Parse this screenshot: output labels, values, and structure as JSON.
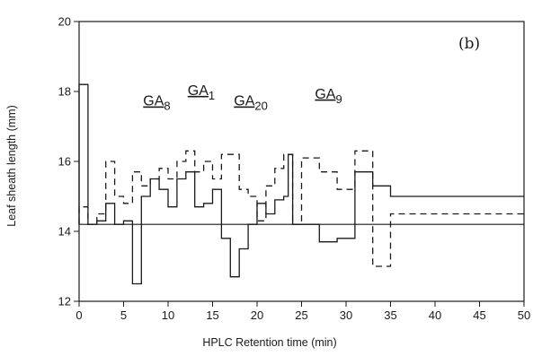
{
  "chart_data": {
    "type": "line",
    "title": "",
    "panel_label": "(b)",
    "xlabel": "HPLC Retention time (min)",
    "ylabel": "Leaf sheath length (mm)",
    "xlim": [
      0,
      50
    ],
    "ylim": [
      12,
      20
    ],
    "x_ticks": [
      0,
      5,
      10,
      15,
      20,
      25,
      30,
      35,
      40,
      45,
      50
    ],
    "y_ticks": [
      12,
      14,
      16,
      18,
      20
    ],
    "grid": false,
    "baseline": 14.2,
    "annotations": [
      {
        "base": "GA",
        "sub": "8",
        "x": 7.2,
        "y": 17.6
      },
      {
        "base": "GA",
        "sub": "1",
        "x": 12.2,
        "y": 17.9
      },
      {
        "base": "GA",
        "sub": "20",
        "x": 17.4,
        "y": 17.6
      },
      {
        "base": "GA",
        "sub": "9",
        "x": 26.5,
        "y": 17.8
      }
    ],
    "series": [
      {
        "style": "solid",
        "steps": [
          [
            0,
            18.2
          ],
          [
            1,
            14.2
          ],
          [
            2,
            14.3
          ],
          [
            3,
            14.8
          ],
          [
            4,
            14.2
          ],
          [
            5,
            14.3
          ],
          [
            6,
            12.5
          ],
          [
            7,
            15.0
          ],
          [
            8,
            15.5
          ],
          [
            9,
            15.2
          ],
          [
            10,
            14.7
          ],
          [
            11,
            15.5
          ],
          [
            12,
            15.7
          ],
          [
            13,
            14.7
          ],
          [
            14,
            14.8
          ],
          [
            15,
            15.2
          ],
          [
            16,
            13.8
          ],
          [
            17,
            12.7
          ],
          [
            18,
            13.5
          ],
          [
            19,
            14.2
          ],
          [
            20,
            14.8
          ],
          [
            21,
            14.5
          ],
          [
            22,
            14.9
          ],
          [
            23,
            15.0
          ],
          [
            23.5,
            16.2
          ],
          [
            24,
            14.2
          ],
          [
            27,
            13.7
          ],
          [
            29,
            13.8
          ],
          [
            31,
            15.7
          ],
          [
            33,
            15.3
          ],
          [
            35,
            15.0
          ],
          [
            50,
            15.0
          ]
        ]
      },
      {
        "style": "dashed",
        "steps": [
          [
            0,
            14.7
          ],
          [
            1,
            14.2
          ],
          [
            2,
            14.5
          ],
          [
            3,
            16.0
          ],
          [
            4,
            15.0
          ],
          [
            5,
            14.8
          ],
          [
            6,
            15.7
          ],
          [
            7,
            15.3
          ],
          [
            8,
            15.5
          ],
          [
            9,
            15.8
          ],
          [
            10,
            15.5
          ],
          [
            11,
            16.0
          ],
          [
            12,
            16.3
          ],
          [
            13,
            15.7
          ],
          [
            14,
            16.0
          ],
          [
            15,
            15.5
          ],
          [
            16,
            16.2
          ],
          [
            18,
            15.2
          ],
          [
            19,
            15.0
          ],
          [
            20,
            14.3
          ],
          [
            21,
            15.3
          ],
          [
            22,
            15.8
          ],
          [
            23,
            16.2
          ],
          [
            24,
            14.2
          ],
          [
            25,
            16.1
          ],
          [
            27,
            15.7
          ],
          [
            29,
            15.2
          ],
          [
            31,
            16.3
          ],
          [
            33,
            13.0
          ],
          [
            35,
            14.5
          ],
          [
            50,
            14.5
          ]
        ]
      }
    ]
  }
}
